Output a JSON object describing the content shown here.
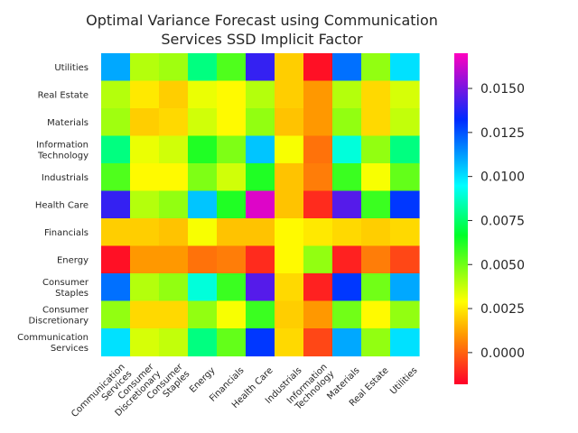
{
  "chart_data": {
    "type": "heatmap",
    "title": [
      "Optimal Variance Forecast using Communication",
      "Services SSD Implicit Factor"
    ],
    "xlabel": "",
    "ylabel": "",
    "rows": [
      "Utilities",
      "Real Estate",
      "Materials",
      "Information Technology",
      "Industrials",
      "Health Care",
      "Financials",
      "Energy",
      "Consumer Staples",
      "Consumer Discretionary",
      "Communication Services"
    ],
    "row_labels": [
      [
        "Utilities"
      ],
      [
        "Real Estate"
      ],
      [
        "Materials"
      ],
      [
        "Information",
        "Technology"
      ],
      [
        "Industrials"
      ],
      [
        "Health Care"
      ],
      [
        "Financials"
      ],
      [
        "Energy"
      ],
      [
        "Consumer",
        "Staples"
      ],
      [
        "Consumer",
        "Discretionary"
      ],
      [
        "Communication",
        "Services"
      ]
    ],
    "columns": [
      "Communication Services",
      "Consumer Discretionary",
      "Consumer Staples",
      "Energy",
      "Financials",
      "Health Care",
      "Industrials",
      "Information Technology",
      "Materials",
      "Real Estate",
      "Utilities"
    ],
    "column_labels": [
      [
        "Communication",
        "Services"
      ],
      [
        "Consumer",
        "Discretionary"
      ],
      [
        "Consumer",
        "Staples"
      ],
      [
        "Energy"
      ],
      [
        "Financials"
      ],
      [
        "Health Care"
      ],
      [
        "Industrials"
      ],
      [
        "Information",
        "Technology"
      ],
      [
        "Materials"
      ],
      [
        "Real Estate"
      ],
      [
        "Utilities"
      ]
    ],
    "values": [
      [
        0.011,
        0.004,
        0.0043,
        0.0078,
        0.0055,
        0.014,
        0.002,
        -0.0015,
        0.012,
        0.0045,
        0.01
      ],
      [
        0.004,
        0.0025,
        0.002,
        0.0032,
        0.0028,
        0.004,
        0.002,
        0.001,
        0.004,
        0.0022,
        0.0035
      ],
      [
        0.0043,
        0.002,
        0.0022,
        0.0036,
        0.0028,
        0.0045,
        0.0018,
        0.001,
        0.0045,
        0.0022,
        0.0038
      ],
      [
        0.0078,
        0.0032,
        0.0036,
        0.0062,
        0.0048,
        0.0105,
        0.003,
        0.0003,
        0.009,
        0.0045,
        0.0078
      ],
      [
        0.0055,
        0.0028,
        0.0028,
        0.0048,
        0.0036,
        0.0062,
        0.0018,
        0.0005,
        0.0058,
        0.003,
        0.0052
      ],
      [
        0.014,
        0.004,
        0.0045,
        0.0105,
        0.0062,
        0.0165,
        0.0018,
        -0.001,
        0.0145,
        0.0058,
        0.013
      ],
      [
        0.002,
        0.002,
        0.0018,
        0.003,
        0.0018,
        0.0018,
        0.0028,
        0.0025,
        0.0022,
        0.002,
        0.0022
      ],
      [
        -0.0015,
        0.001,
        0.001,
        0.0003,
        0.0005,
        -0.001,
        0.0028,
        0.0045,
        -0.0012,
        0.0005,
        -0.0005
      ],
      [
        0.012,
        0.004,
        0.0045,
        0.009,
        0.0058,
        0.0145,
        0.0022,
        -0.0012,
        0.013,
        0.005,
        0.011
      ],
      [
        0.0045,
        0.0022,
        0.0022,
        0.0045,
        0.003,
        0.0058,
        0.002,
        0.001,
        0.005,
        0.0028,
        0.0045
      ],
      [
        0.01,
        0.0035,
        0.0038,
        0.0078,
        0.0052,
        0.013,
        0.0022,
        -0.0005,
        0.011,
        0.0045,
        0.01
      ]
    ],
    "colormap": "gist_rainbow",
    "vmin": -0.0018,
    "vmax": 0.017,
    "colorbar_ticks": [
      0.0,
      0.0025,
      0.005,
      0.0075,
      0.01,
      0.0125,
      0.015
    ],
    "colorbar_tick_labels": [
      "0.0000",
      "0.0025",
      "0.0050",
      "0.0075",
      "0.0100",
      "0.0125",
      "0.0150"
    ],
    "grid": false
  }
}
